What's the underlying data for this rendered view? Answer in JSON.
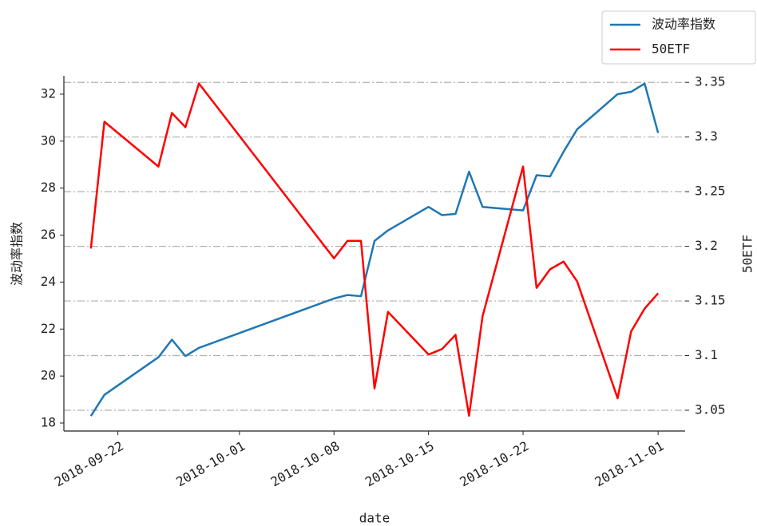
{
  "chart_data": {
    "type": "line",
    "x_label": "date",
    "y_label": "波动率指数",
    "y2_label": "50ETF",
    "x": [
      "2018-09-20",
      "2018-09-21",
      "2018-09-25",
      "2018-09-26",
      "2018-09-27",
      "2018-09-28",
      "2018-10-08",
      "2018-10-09",
      "2018-10-10",
      "2018-10-11",
      "2018-10-12",
      "2018-10-15",
      "2018-10-16",
      "2018-10-17",
      "2018-10-18",
      "2018-10-19",
      "2018-10-22",
      "2018-10-23",
      "2018-10-24",
      "2018-10-25",
      "2018-10-26",
      "2018-10-29",
      "2018-10-30",
      "2018-10-31",
      "2018-11-01"
    ],
    "series": [
      {
        "name": "波动率指数",
        "color": "#1f77b4",
        "axis": "y",
        "values": [
          18.3,
          19.2,
          20.8,
          21.55,
          20.85,
          21.2,
          23.3,
          23.45,
          23.4,
          25.75,
          26.2,
          27.2,
          26.85,
          26.9,
          28.7,
          27.2,
          27.05,
          28.55,
          28.5,
          29.55,
          30.5,
          32.0,
          32.1,
          32.45,
          30.35
        ]
      },
      {
        "name": "50ETF",
        "color": "#ff0000",
        "axis": "y2",
        "values": [
          3.198,
          3.314,
          3.273,
          3.322,
          3.309,
          3.349,
          3.189,
          3.205,
          3.205,
          3.07,
          3.14,
          3.101,
          3.106,
          3.119,
          3.045,
          3.136,
          3.273,
          3.162,
          3.179,
          3.186,
          3.168,
          3.061,
          3.122,
          3.143,
          3.157
        ]
      }
    ],
    "xlim": [
      "2018-09-18",
      "2018-11-03"
    ],
    "xticks": [
      "2018-09-22",
      "2018-10-01",
      "2018-10-08",
      "2018-10-15",
      "2018-10-22",
      "2018-11-01"
    ],
    "ylim": [
      17.66,
      32.78
    ],
    "yticks": [
      18,
      20,
      22,
      24,
      26,
      28,
      30,
      32
    ],
    "y2lim": [
      3.031,
      3.356
    ],
    "y2ticks": [
      3.05,
      3.1,
      3.15,
      3.2,
      3.25,
      3.3,
      3.35
    ],
    "grid": true,
    "legend": "upper right"
  }
}
